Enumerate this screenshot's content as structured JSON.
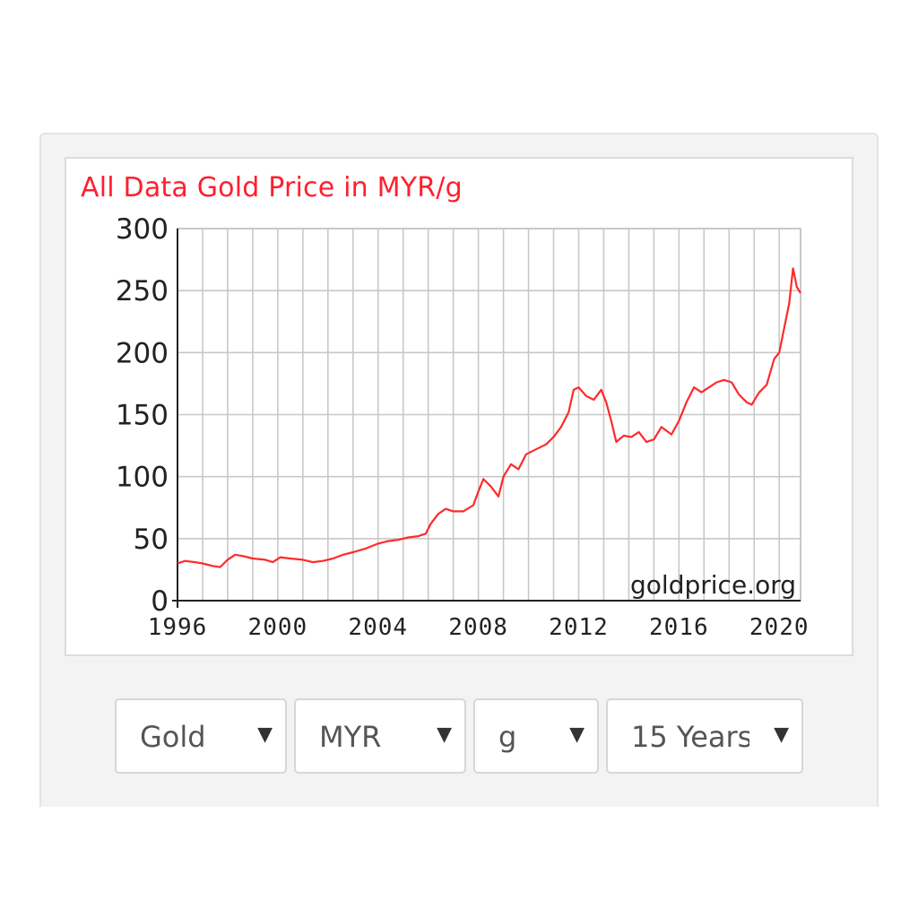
{
  "chart_data": {
    "type": "line",
    "title": "All Data Gold Price in MYR/g",
    "watermark": "goldprice.org",
    "xlabel": "",
    "ylabel": "",
    "xlim": [
      1996,
      2020.85
    ],
    "ylim": [
      0,
      300
    ],
    "x_ticks": [
      1996,
      2000,
      2004,
      2008,
      2012,
      2016,
      2020
    ],
    "y_ticks": [
      0,
      50,
      100,
      150,
      200,
      250,
      300
    ],
    "grid": true,
    "line_color": "#ff2a2a",
    "series": [
      {
        "points": [
          [
            1996.0,
            30
          ],
          [
            1996.3,
            32
          ],
          [
            1996.7,
            31
          ],
          [
            1997.0,
            30
          ],
          [
            1997.4,
            28
          ],
          [
            1997.7,
            27
          ],
          [
            1998.0,
            33
          ],
          [
            1998.3,
            37
          ],
          [
            1998.6,
            36
          ],
          [
            1999.0,
            34
          ],
          [
            1999.5,
            33
          ],
          [
            1999.8,
            31
          ],
          [
            2000.1,
            35
          ],
          [
            2000.5,
            34
          ],
          [
            2001.0,
            33
          ],
          [
            2001.4,
            31
          ],
          [
            2001.8,
            32
          ],
          [
            2002.2,
            34
          ],
          [
            2002.6,
            37
          ],
          [
            2003.0,
            39
          ],
          [
            2003.5,
            42
          ],
          [
            2004.0,
            46
          ],
          [
            2004.4,
            48
          ],
          [
            2004.8,
            49
          ],
          [
            2005.2,
            51
          ],
          [
            2005.6,
            52
          ],
          [
            2005.9,
            54
          ],
          [
            2006.1,
            62
          ],
          [
            2006.4,
            70
          ],
          [
            2006.7,
            74
          ],
          [
            2007.0,
            72
          ],
          [
            2007.4,
            72
          ],
          [
            2007.8,
            77
          ],
          [
            2008.0,
            88
          ],
          [
            2008.2,
            98
          ],
          [
            2008.5,
            92
          ],
          [
            2008.8,
            84
          ],
          [
            2009.0,
            100
          ],
          [
            2009.3,
            110
          ],
          [
            2009.6,
            106
          ],
          [
            2009.9,
            118
          ],
          [
            2010.3,
            122
          ],
          [
            2010.7,
            126
          ],
          [
            2011.0,
            132
          ],
          [
            2011.3,
            140
          ],
          [
            2011.6,
            152
          ],
          [
            2011.8,
            170
          ],
          [
            2012.0,
            172
          ],
          [
            2012.3,
            165
          ],
          [
            2012.6,
            162
          ],
          [
            2012.9,
            170
          ],
          [
            2013.1,
            160
          ],
          [
            2013.3,
            145
          ],
          [
            2013.5,
            128
          ],
          [
            2013.8,
            133
          ],
          [
            2014.1,
            132
          ],
          [
            2014.4,
            136
          ],
          [
            2014.7,
            128
          ],
          [
            2015.0,
            130
          ],
          [
            2015.3,
            140
          ],
          [
            2015.7,
            134
          ],
          [
            2016.0,
            145
          ],
          [
            2016.3,
            160
          ],
          [
            2016.6,
            172
          ],
          [
            2016.9,
            168
          ],
          [
            2017.2,
            172
          ],
          [
            2017.5,
            176
          ],
          [
            2017.8,
            178
          ],
          [
            2018.1,
            176
          ],
          [
            2018.4,
            166
          ],
          [
            2018.7,
            160
          ],
          [
            2018.9,
            158
          ],
          [
            2019.2,
            168
          ],
          [
            2019.5,
            174
          ],
          [
            2019.8,
            195
          ],
          [
            2020.0,
            200
          ],
          [
            2020.2,
            220
          ],
          [
            2020.4,
            240
          ],
          [
            2020.55,
            268
          ],
          [
            2020.7,
            253
          ],
          [
            2020.85,
            248
          ]
        ]
      }
    ]
  },
  "controls": {
    "metal": "Gold",
    "currency": "MYR",
    "unit": "g",
    "period": "15 Years",
    "arrow": "▼"
  }
}
